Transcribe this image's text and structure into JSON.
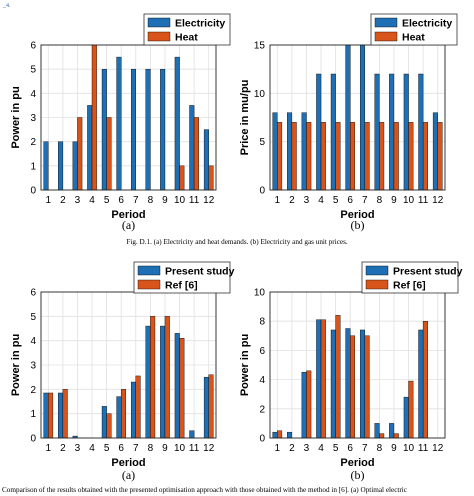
{
  "header_fragment": "_4.",
  "caption_1": "Fig. D.1.  (a) Electricity and heat demands. (b) Electricity and gas unit prices.",
  "caption_2": "Comparison of the results obtained with the presented optimisation approach with those obtained with the method in [6]. (a) Optimal electric",
  "colors": {
    "blue": "#1f6fb4",
    "orange": "#d9541a"
  },
  "chart_data": [
    {
      "id": "a1",
      "type": "bar",
      "panel_label": "(a)",
      "xlabel": "Period",
      "ylabel": "Power in pu",
      "ylim": [
        0,
        6
      ],
      "yticks": [
        0,
        1,
        2,
        3,
        4,
        5,
        6
      ],
      "categories": [
        "1",
        "2",
        "3",
        "4",
        "5",
        "6",
        "7",
        "8",
        "9",
        "10",
        "11",
        "12"
      ],
      "legend_position": "top-right",
      "grid": true,
      "series": [
        {
          "name": "Electricity",
          "color": "#1f6fb4",
          "values": [
            2,
            2,
            2,
            3.5,
            5,
            5.5,
            5,
            5,
            5,
            5.5,
            3.5,
            2.5
          ]
        },
        {
          "name": "Heat",
          "color": "#d9541a",
          "values": [
            0,
            0,
            3,
            6,
            3,
            0,
            0,
            0,
            0,
            1,
            3,
            1
          ]
        }
      ]
    },
    {
      "id": "b1",
      "type": "bar",
      "panel_label": "(b)",
      "xlabel": "Period",
      "ylabel": "Price in mu/pu",
      "ylim": [
        0,
        15
      ],
      "yticks": [
        0,
        5,
        10,
        15
      ],
      "categories": [
        "1",
        "2",
        "3",
        "4",
        "5",
        "6",
        "7",
        "8",
        "9",
        "10",
        "11",
        "12"
      ],
      "legend_position": "top-right",
      "grid": true,
      "series": [
        {
          "name": "Electricity",
          "color": "#1f6fb4",
          "values": [
            8,
            8,
            8,
            12,
            12,
            15,
            15,
            12,
            12,
            12,
            12,
            8
          ]
        },
        {
          "name": "Heat",
          "color": "#d9541a",
          "values": [
            7,
            7,
            7,
            7,
            7,
            7,
            7,
            7,
            7,
            7,
            7,
            7
          ]
        }
      ]
    },
    {
      "id": "a2",
      "type": "bar",
      "panel_label": "(a)",
      "xlabel": "Period",
      "ylabel": "Power in pu",
      "ylim": [
        0,
        6
      ],
      "yticks": [
        0,
        1,
        2,
        3,
        4,
        5,
        6
      ],
      "categories": [
        "1",
        "2",
        "3",
        "4",
        "5",
        "6",
        "7",
        "8",
        "9",
        "10",
        "11",
        "12"
      ],
      "legend_position": "top-right",
      "grid": true,
      "series": [
        {
          "name": "Present study",
          "color": "#1f6fb4",
          "values": [
            1.85,
            1.85,
            0.08,
            0,
            1.3,
            1.7,
            2.3,
            4.6,
            4.6,
            4.3,
            0.3,
            2.5
          ]
        },
        {
          "name": "Ref [6]",
          "color": "#d9541a",
          "values": [
            1.85,
            2.0,
            0,
            0,
            1.0,
            2.0,
            2.55,
            5.0,
            5.0,
            4.1,
            0,
            2.6
          ]
        }
      ]
    },
    {
      "id": "b2",
      "type": "bar",
      "panel_label": "(b)",
      "xlabel": "Period",
      "ylabel": "Power in pu",
      "ylim": [
        0,
        10
      ],
      "yticks": [
        0,
        2,
        4,
        6,
        8,
        10
      ],
      "categories": [
        "1",
        "2",
        "3",
        "4",
        "5",
        "6",
        "7",
        "8",
        "9",
        "10",
        "11",
        "12"
      ],
      "legend_position": "top-right",
      "grid": true,
      "series": [
        {
          "name": "Present study",
          "color": "#1f6fb4",
          "values": [
            0.4,
            0.4,
            4.5,
            8.1,
            7.4,
            7.5,
            7.4,
            1.0,
            1.0,
            2.8,
            7.4,
            0
          ]
        },
        {
          "name": "Ref [6]",
          "color": "#d9541a",
          "values": [
            0.5,
            0,
            4.6,
            8.1,
            8.4,
            7.0,
            7.0,
            0.3,
            0.3,
            3.9,
            8.0,
            0
          ]
        }
      ]
    }
  ]
}
